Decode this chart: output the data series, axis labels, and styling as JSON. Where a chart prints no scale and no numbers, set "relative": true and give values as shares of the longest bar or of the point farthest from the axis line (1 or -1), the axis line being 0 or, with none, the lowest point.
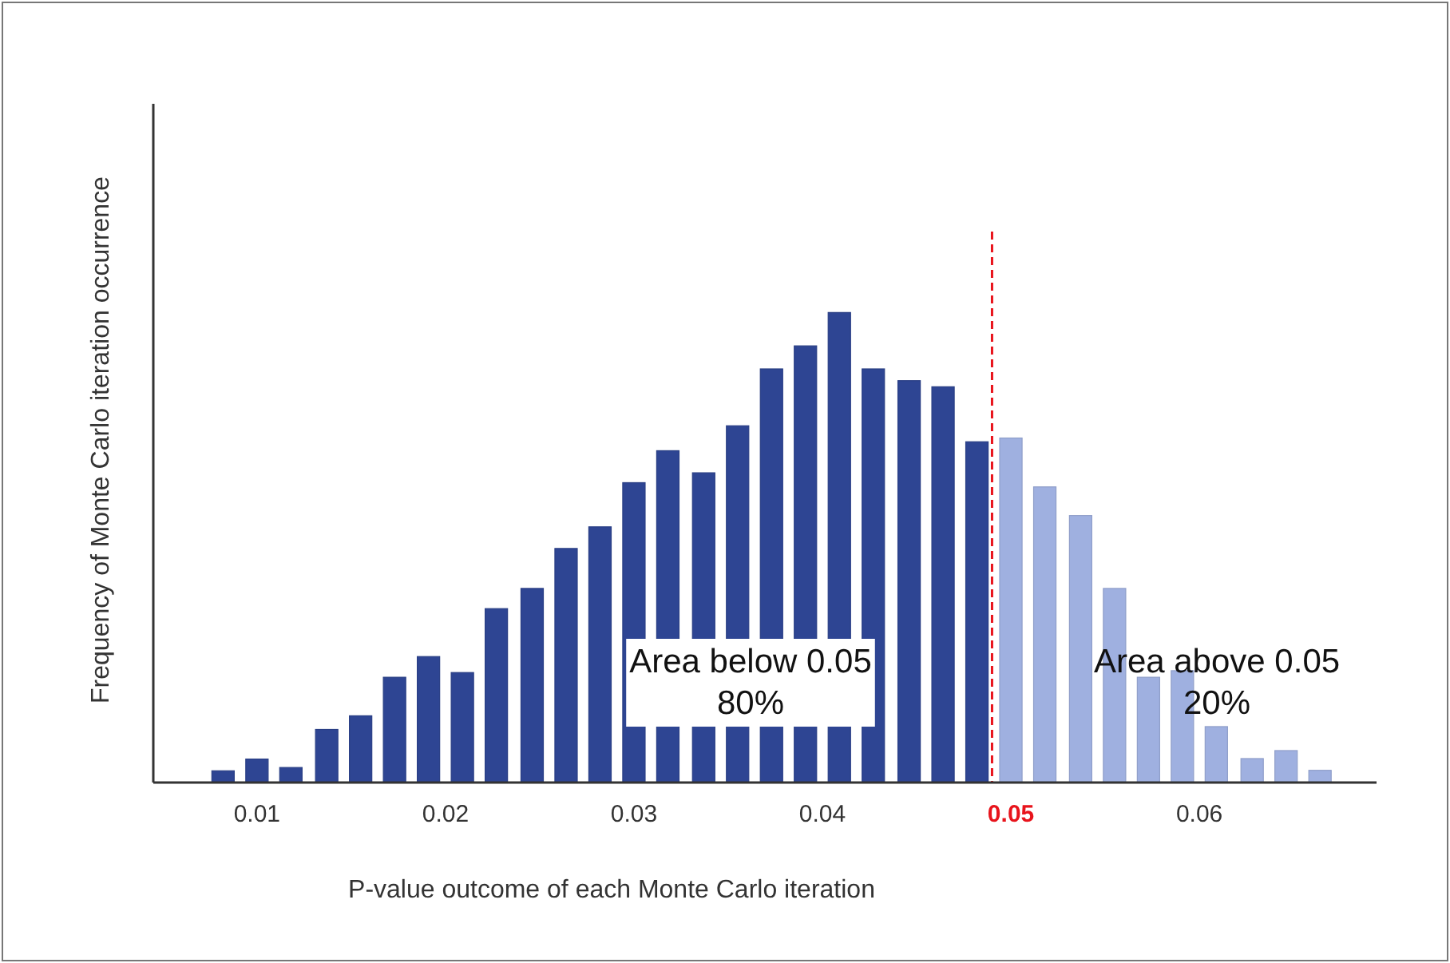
{
  "chart_data": {
    "type": "bar",
    "relative": true,
    "xlabel": "P-value outcome of each Monte Carlo iteration",
    "ylabel": "Frequency of Monte Carlo iteration occurrence",
    "xlim": [
      0.0045,
      0.0694
    ],
    "xticks": [
      0.01,
      0.02,
      0.03,
      0.04,
      0.05,
      0.06
    ],
    "grid": false,
    "series": [
      {
        "color": "#2e4593",
        "x": [
          0.0082,
          0.01,
          0.0118,
          0.0137,
          0.0155,
          0.0173,
          0.0191,
          0.0209,
          0.0227,
          0.0246,
          0.0264,
          0.0282,
          0.03,
          0.0318,
          0.0337,
          0.0355,
          0.0373,
          0.0391,
          0.0409,
          0.0427,
          0.0446,
          0.0464,
          0.0482
        ],
        "values": [
          0.025,
          0.05,
          0.032,
          0.113,
          0.142,
          0.224,
          0.268,
          0.234,
          0.37,
          0.413,
          0.498,
          0.544,
          0.638,
          0.706,
          0.659,
          0.759,
          0.88,
          0.929,
          1,
          0.88,
          0.855,
          0.842,
          0.725
        ]
      },
      {
        "color": "#9fb0e0",
        "x": [
          0.05,
          0.0518,
          0.0537,
          0.0555,
          0.0573,
          0.0591,
          0.0609,
          0.0628,
          0.0646,
          0.0664
        ],
        "values": [
          0.733,
          0.629,
          0.568,
          0.413,
          0.224,
          0.238,
          0.119,
          0.051,
          0.068,
          0.026
        ]
      }
    ],
    "ref_lines": [
      {
        "axis": "x",
        "value": 0.049,
        "color": "#e8141c",
        "line_style": "dashed"
      }
    ],
    "annotations": [
      "Area below 0.05\n80%",
      "Area above 0.05\n20%"
    ]
  }
}
